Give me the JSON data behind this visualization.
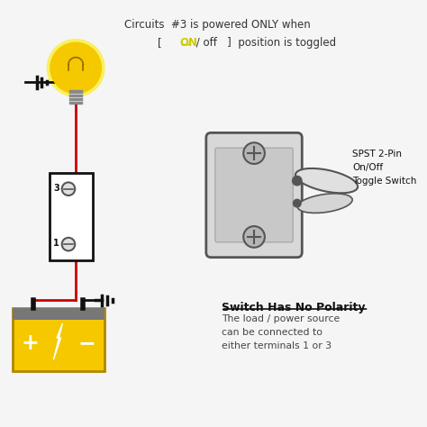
{
  "bg_color": "#f5f5f5",
  "title_line1": "Circuits  #3 is powered ONLY when",
  "title_line2_pre": "[  ",
  "title_line2_on": "ON",
  "title_line2_post": " / off   ]  position is toggled",
  "switch_label": "SPST 2-Pin\nOn/Off\nToggle Switch",
  "bottom_label_title": "Switch Has No Polarity",
  "bottom_label_body": "The load / power source\ncan be connected to\neither terminals 1 or 3",
  "wire_color": "#cc0000",
  "black_color": "#111111",
  "yellow_color": "#f5c800",
  "gray_color": "#888888",
  "light_gray": "#cccccc",
  "dark_gray": "#555555",
  "on_color": "#cccc00"
}
